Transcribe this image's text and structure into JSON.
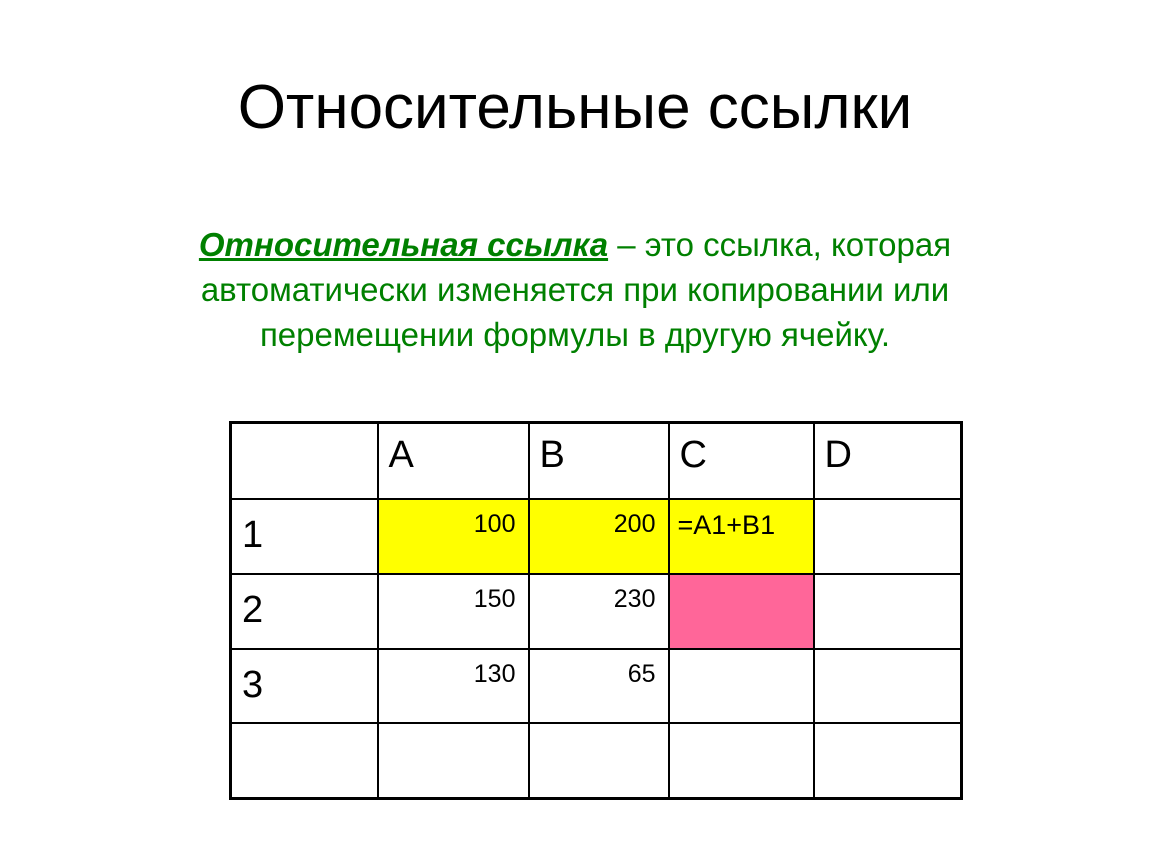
{
  "slide": {
    "title": "Относительные ссылки",
    "definition": {
      "term": "Относительная ссылка",
      "text": " – это ссылка, которая автоматически изменяется при копировании или перемещении формулы в другую ячейку."
    }
  },
  "colors": {
    "text_green": "#008000",
    "highlight_yellow": "#ffff00",
    "highlight_pink": "#ff6699"
  },
  "spreadsheet": {
    "columns": [
      "",
      "A",
      "B",
      "C",
      "D"
    ],
    "rows": [
      {
        "header": "1",
        "cells": [
          "100",
          "200",
          "=A1+B1",
          ""
        ]
      },
      {
        "header": "2",
        "cells": [
          "150",
          "230",
          "",
          ""
        ]
      },
      {
        "header": "3",
        "cells": [
          "130",
          "65",
          "",
          ""
        ]
      },
      {
        "header": "",
        "cells": [
          "",
          "",
          "",
          ""
        ]
      }
    ]
  }
}
